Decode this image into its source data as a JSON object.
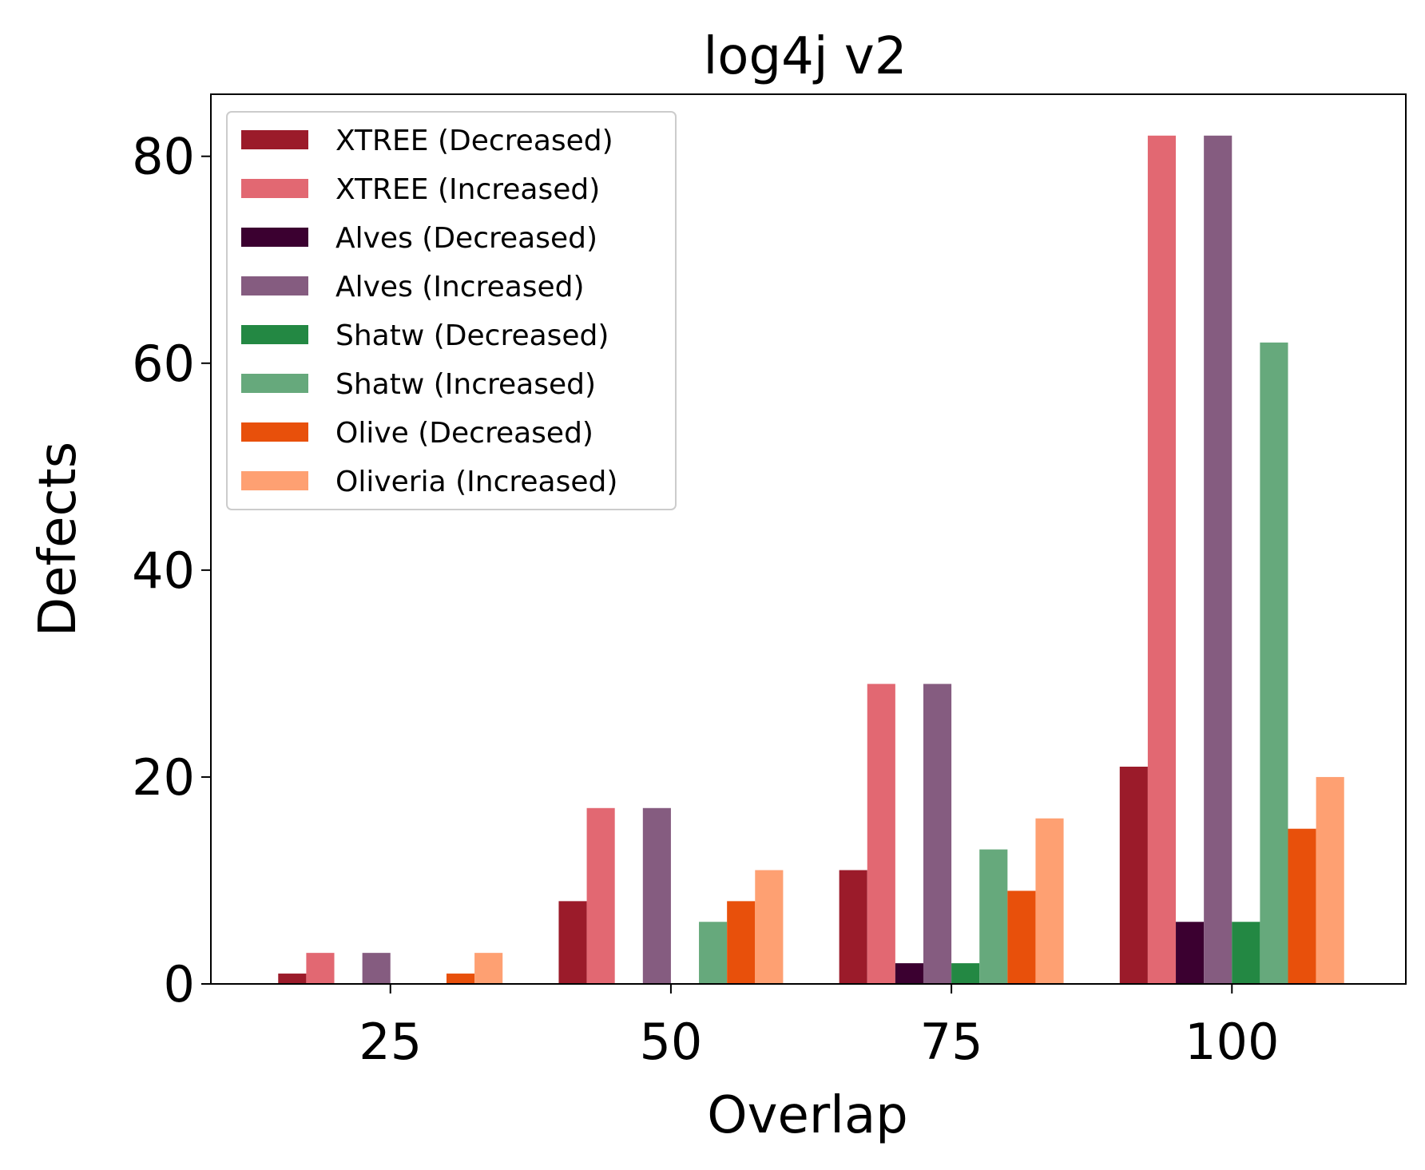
{
  "chart_data": {
    "type": "bar",
    "title": "log4j v2",
    "xlabel": "Overlap",
    "ylabel": "Defects",
    "categories": [
      "25",
      "50",
      "75",
      "100"
    ],
    "x": [
      25,
      50,
      75,
      100
    ],
    "xlim": [
      9,
      115.5
    ],
    "ylim": [
      0,
      86
    ],
    "yticks": [
      0,
      20,
      40,
      60,
      80
    ],
    "grid": false,
    "legend_position": "top-left",
    "series": [
      {
        "name": "XTREE (Decreased)",
        "color": "#9b1b2a",
        "values": [
          1,
          8,
          11,
          21
        ]
      },
      {
        "name": "XTREE (Increased)",
        "color": "#e26872",
        "values": [
          3,
          17,
          29,
          82
        ]
      },
      {
        "name": "Alves (Decreased)",
        "color": "#3b0030",
        "values": [
          0,
          0,
          2,
          6
        ]
      },
      {
        "name": "Alves (Increased)",
        "color": "#855c80",
        "values": [
          3,
          17,
          29,
          82
        ]
      },
      {
        "name": "Shatw (Decreased)",
        "color": "#238843",
        "values": [
          0,
          0,
          2,
          6
        ]
      },
      {
        "name": "Shatw (Increased)",
        "color": "#66a97c",
        "values": [
          0,
          6,
          13,
          62
        ]
      },
      {
        "name": "Olive (Decreased)",
        "color": "#e8500b",
        "values": [
          1,
          8,
          9,
          15
        ]
      },
      {
        "name": "Oliveria (Increased)",
        "color": "#fea072",
        "values": [
          3,
          11,
          16,
          20
        ]
      }
    ]
  }
}
